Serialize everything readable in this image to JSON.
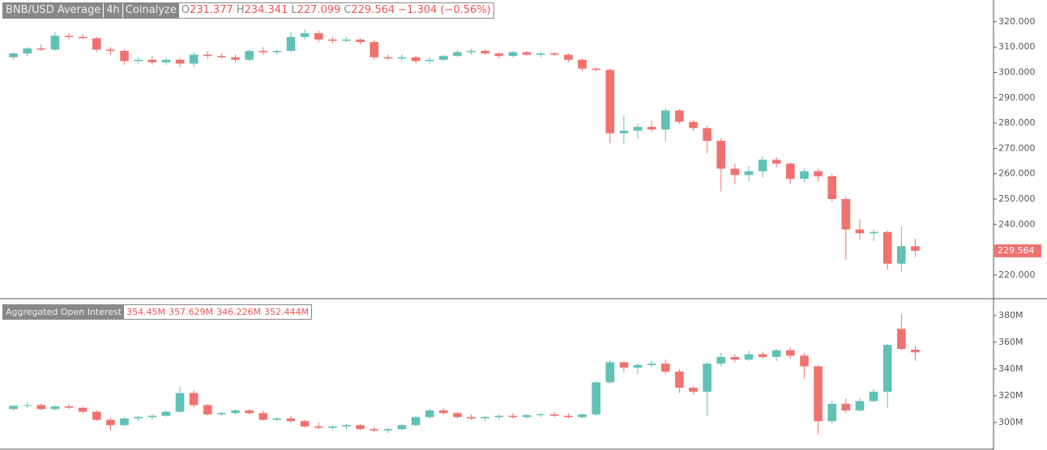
{
  "chart_data": [
    {
      "type": "candlestick",
      "symbol": "BNB/USD Average",
      "interval": "4h",
      "source": "Coinalyze",
      "readout": [
        {
          "label": "O",
          "value": "231.377"
        },
        {
          "label": "H",
          "value": "234.341"
        },
        {
          "label": "L",
          "value": "227.099"
        },
        {
          "label": "C",
          "value": "229.564"
        }
      ],
      "change": "−1.304 (−0.56%)",
      "last_price": {
        "value": 229.564,
        "label": "229.564"
      },
      "up_color": "#60c1b5",
      "down_color": "#f0716e",
      "grid": false,
      "ylim": [
        211,
        328.6
      ],
      "yticks": [
        {
          "value": 220,
          "label": "220.000"
        },
        {
          "value": 230,
          "label": "230.000"
        },
        {
          "value": 240,
          "label": "240.000"
        },
        {
          "value": 250,
          "label": "250.000"
        },
        {
          "value": 260,
          "label": "260.000"
        },
        {
          "value": 270,
          "label": "270.000"
        },
        {
          "value": 280,
          "label": "280.000"
        },
        {
          "value": 290,
          "label": "290.000"
        },
        {
          "value": 300,
          "label": "300.000"
        },
        {
          "value": 310,
          "label": "310.000"
        },
        {
          "value": 320,
          "label": "320.000"
        }
      ],
      "candles": [
        [
          306,
          308,
          305,
          307.5
        ],
        [
          307.5,
          310,
          306.5,
          309.5
        ],
        [
          309.5,
          311,
          308.5,
          309
        ],
        [
          309,
          316,
          308.5,
          314.5
        ],
        [
          314.5,
          315.5,
          313,
          314
        ],
        [
          314,
          315,
          313,
          313.5
        ],
        [
          313.5,
          314,
          308,
          309
        ],
        [
          309,
          310,
          307,
          308.5
        ],
        [
          308.5,
          309,
          303,
          304.5
        ],
        [
          304.5,
          306,
          303.5,
          305
        ],
        [
          305,
          306.5,
          303,
          304
        ],
        [
          304,
          306,
          303,
          305
        ],
        [
          305,
          306,
          302,
          303.5
        ],
        [
          303.5,
          308,
          302,
          307
        ],
        [
          307,
          308.5,
          305.5,
          306.5
        ],
        [
          306.5,
          307.5,
          305.5,
          306
        ],
        [
          306,
          307,
          304,
          305
        ],
        [
          305,
          309,
          304.5,
          308.5
        ],
        [
          308.5,
          310,
          307,
          308
        ],
        [
          308,
          309,
          307,
          308.5
        ],
        [
          308.5,
          316,
          308,
          314
        ],
        [
          314,
          317,
          313,
          315.5
        ],
        [
          315.5,
          316.5,
          312,
          313
        ],
        [
          313,
          314,
          311.5,
          312.5
        ],
        [
          312.5,
          314,
          312,
          313
        ],
        [
          313,
          313.5,
          311,
          312
        ],
        [
          312,
          313,
          305,
          306
        ],
        [
          306,
          307,
          305,
          305.5
        ],
        [
          305.5,
          307,
          304.5,
          306
        ],
        [
          306,
          306.5,
          303.5,
          304.5
        ],
        [
          304.5,
          306,
          303.5,
          305
        ],
        [
          305,
          307,
          304.5,
          306.5
        ],
        [
          306.5,
          309,
          306,
          308
        ],
        [
          308,
          309.5,
          307,
          308.5
        ],
        [
          308.5,
          309,
          307,
          307.5
        ],
        [
          307.5,
          308,
          305.5,
          306.5
        ],
        [
          306.5,
          308.5,
          306,
          308
        ],
        [
          308,
          308.5,
          306.5,
          307
        ],
        [
          307,
          308,
          306,
          307.5
        ],
        [
          307.5,
          308,
          306.5,
          307
        ],
        [
          307,
          307.5,
          304,
          305
        ],
        [
          305,
          305.5,
          300.5,
          301.5
        ],
        [
          301.5,
          302,
          300.5,
          301
        ],
        [
          301,
          301.5,
          272,
          276
        ],
        [
          276,
          283,
          272,
          277
        ],
        [
          277,
          280,
          274,
          278.5
        ],
        [
          278.5,
          281,
          276.5,
          277.5
        ],
        [
          277.5,
          286,
          273,
          285
        ],
        [
          285,
          285.5,
          279.5,
          280.5
        ],
        [
          280.5,
          281,
          277,
          278
        ],
        [
          278,
          279,
          268,
          273
        ],
        [
          273,
          274,
          253,
          262
        ],
        [
          262,
          264,
          256,
          259.5
        ],
        [
          259.5,
          263,
          257,
          261
        ],
        [
          261,
          267,
          258.5,
          265.5
        ],
        [
          265.5,
          266.5,
          262.5,
          264
        ],
        [
          264,
          264.5,
          256,
          258
        ],
        [
          258,
          262,
          256.5,
          261
        ],
        [
          261,
          262,
          257,
          259
        ],
        [
          259,
          260,
          249,
          250
        ],
        [
          250,
          251,
          226,
          238
        ],
        [
          238,
          242,
          234,
          236.5
        ],
        [
          236.5,
          238,
          233.5,
          237
        ],
        [
          237,
          237.5,
          222,
          224.5
        ],
        [
          224.5,
          239,
          221,
          231.4
        ],
        [
          231.377,
          234.341,
          227.099,
          229.564
        ]
      ]
    },
    {
      "type": "candlestick",
      "title": "Aggregated Open Interest",
      "readout": [
        "354.45M",
        "357.629M",
        "346.226M",
        "352.444M"
      ],
      "up_color": "#60c1b5",
      "down_color": "#f0716e",
      "grid": false,
      "ylim": [
        280,
        392
      ],
      "yticks": [
        {
          "value": 300,
          "label": "300M"
        },
        {
          "value": 320,
          "label": "320M"
        },
        {
          "value": 340,
          "label": "340M"
        },
        {
          "value": 360,
          "label": "360M"
        },
        {
          "value": 380,
          "label": "380M"
        }
      ],
      "candles": [
        [
          310,
          313,
          309,
          312.5
        ],
        [
          312.5,
          315,
          311,
          313
        ],
        [
          313,
          314,
          309,
          310
        ],
        [
          310,
          313,
          309,
          312
        ],
        [
          312,
          313.5,
          310,
          311
        ],
        [
          311,
          312,
          307,
          308
        ],
        [
          308,
          309,
          301,
          302
        ],
        [
          302,
          304,
          294,
          298
        ],
        [
          298,
          304,
          297,
          303
        ],
        [
          303,
          305,
          301,
          304
        ],
        [
          304,
          306,
          302,
          305
        ],
        [
          305,
          309,
          304,
          308
        ],
        [
          308,
          327,
          307,
          322
        ],
        [
          322,
          324,
          311,
          313
        ],
        [
          313,
          314,
          305,
          306
        ],
        [
          306,
          308,
          305,
          307
        ],
        [
          307,
          310,
          306,
          309
        ],
        [
          309,
          310,
          306,
          307
        ],
        [
          307,
          309,
          301,
          302
        ],
        [
          302,
          304,
          301,
          303
        ],
        [
          303,
          305,
          300,
          301
        ],
        [
          301,
          302,
          296,
          297
        ],
        [
          297,
          300,
          295,
          296
        ],
        [
          296,
          298,
          294,
          297
        ],
        [
          297,
          299,
          295,
          298
        ],
        [
          298,
          299,
          294,
          295
        ],
        [
          295,
          297,
          293,
          294
        ],
        [
          294,
          296,
          292,
          295
        ],
        [
          295,
          299,
          294,
          298
        ],
        [
          298,
          305,
          297,
          304
        ],
        [
          304,
          310,
          303,
          309
        ],
        [
          309,
          311,
          306,
          307
        ],
        [
          307,
          308,
          303,
          304
        ],
        [
          304,
          306,
          302,
          303
        ],
        [
          303,
          305,
          301,
          304
        ],
        [
          304,
          306,
          302,
          305
        ],
        [
          305,
          307,
          303,
          304
        ],
        [
          304,
          306,
          303,
          305.5
        ],
        [
          305.5,
          307,
          304,
          306
        ],
        [
          306,
          308,
          304,
          305
        ],
        [
          305,
          307,
          303,
          304
        ],
        [
          304,
          307,
          303,
          306
        ],
        [
          306,
          331,
          305,
          330
        ],
        [
          330,
          347,
          329,
          345
        ],
        [
          345,
          346,
          338,
          341
        ],
        [
          341,
          344,
          336,
          343
        ],
        [
          343,
          346,
          341,
          344
        ],
        [
          344,
          347,
          336,
          338
        ],
        [
          338,
          340,
          322,
          326
        ],
        [
          326,
          327,
          321,
          323
        ],
        [
          323,
          345,
          305,
          344
        ],
        [
          344,
          352,
          342,
          349
        ],
        [
          349,
          351,
          345,
          347
        ],
        [
          347,
          354,
          346,
          351
        ],
        [
          351,
          353,
          348,
          349
        ],
        [
          349,
          355,
          346,
          354
        ],
        [
          354,
          356,
          348,
          350
        ],
        [
          350,
          352,
          333,
          342
        ],
        [
          342,
          343,
          291,
          301
        ],
        [
          301,
          316,
          299,
          314
        ],
        [
          314,
          318,
          307,
          309
        ],
        [
          309,
          318,
          308,
          316
        ],
        [
          316,
          325,
          315,
          323
        ],
        [
          323,
          359,
          311,
          358
        ],
        [
          370,
          381,
          354,
          355
        ],
        [
          354.45,
          357.629,
          346.226,
          352.444
        ]
      ]
    }
  ]
}
